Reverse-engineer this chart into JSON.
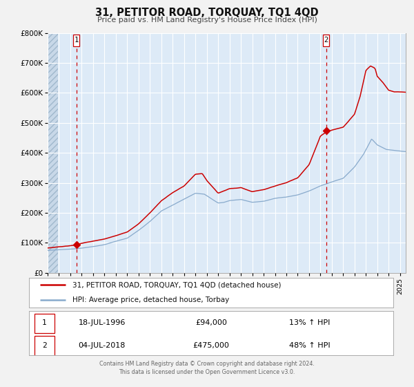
{
  "title": "31, PETITOR ROAD, TORQUAY, TQ1 4QD",
  "subtitle": "Price paid vs. HM Land Registry's House Price Index (HPI)",
  "legend_line1": "31, PETITOR ROAD, TORQUAY, TQ1 4QD (detached house)",
  "legend_line2": "HPI: Average price, detached house, Torbay",
  "sale1_date": "18-JUL-1996",
  "sale1_price": "£94,000",
  "sale1_hpi": "13% ↑ HPI",
  "sale2_date": "04-JUL-2018",
  "sale2_price": "£475,000",
  "sale2_hpi": "48% ↑ HPI",
  "sale1_year": 1996.54,
  "sale1_value": 94000,
  "sale2_year": 2018.51,
  "sale2_value": 475000,
  "xmin": 1994.0,
  "xmax": 2025.5,
  "ymin": 0,
  "ymax": 800000,
  "yticks": [
    0,
    100000,
    200000,
    300000,
    400000,
    500000,
    600000,
    700000,
    800000
  ],
  "ytick_labels": [
    "£0",
    "£100K",
    "£200K",
    "£300K",
    "£400K",
    "£500K",
    "£600K",
    "£700K",
    "£800K"
  ],
  "fig_bg_color": "#f0f0f0",
  "plot_bg_color": "#ddeaf7",
  "hatch_bg_color": "#c8d8e8",
  "grid_color": "#ffffff",
  "red_line_color": "#cc0000",
  "blue_line_color": "#88aacc",
  "vline_color": "#cc0000",
  "marker_color": "#cc0000",
  "footer_text": "Contains HM Land Registry data © Crown copyright and database right 2024.\nThis data is licensed under the Open Government Licence v3.0."
}
